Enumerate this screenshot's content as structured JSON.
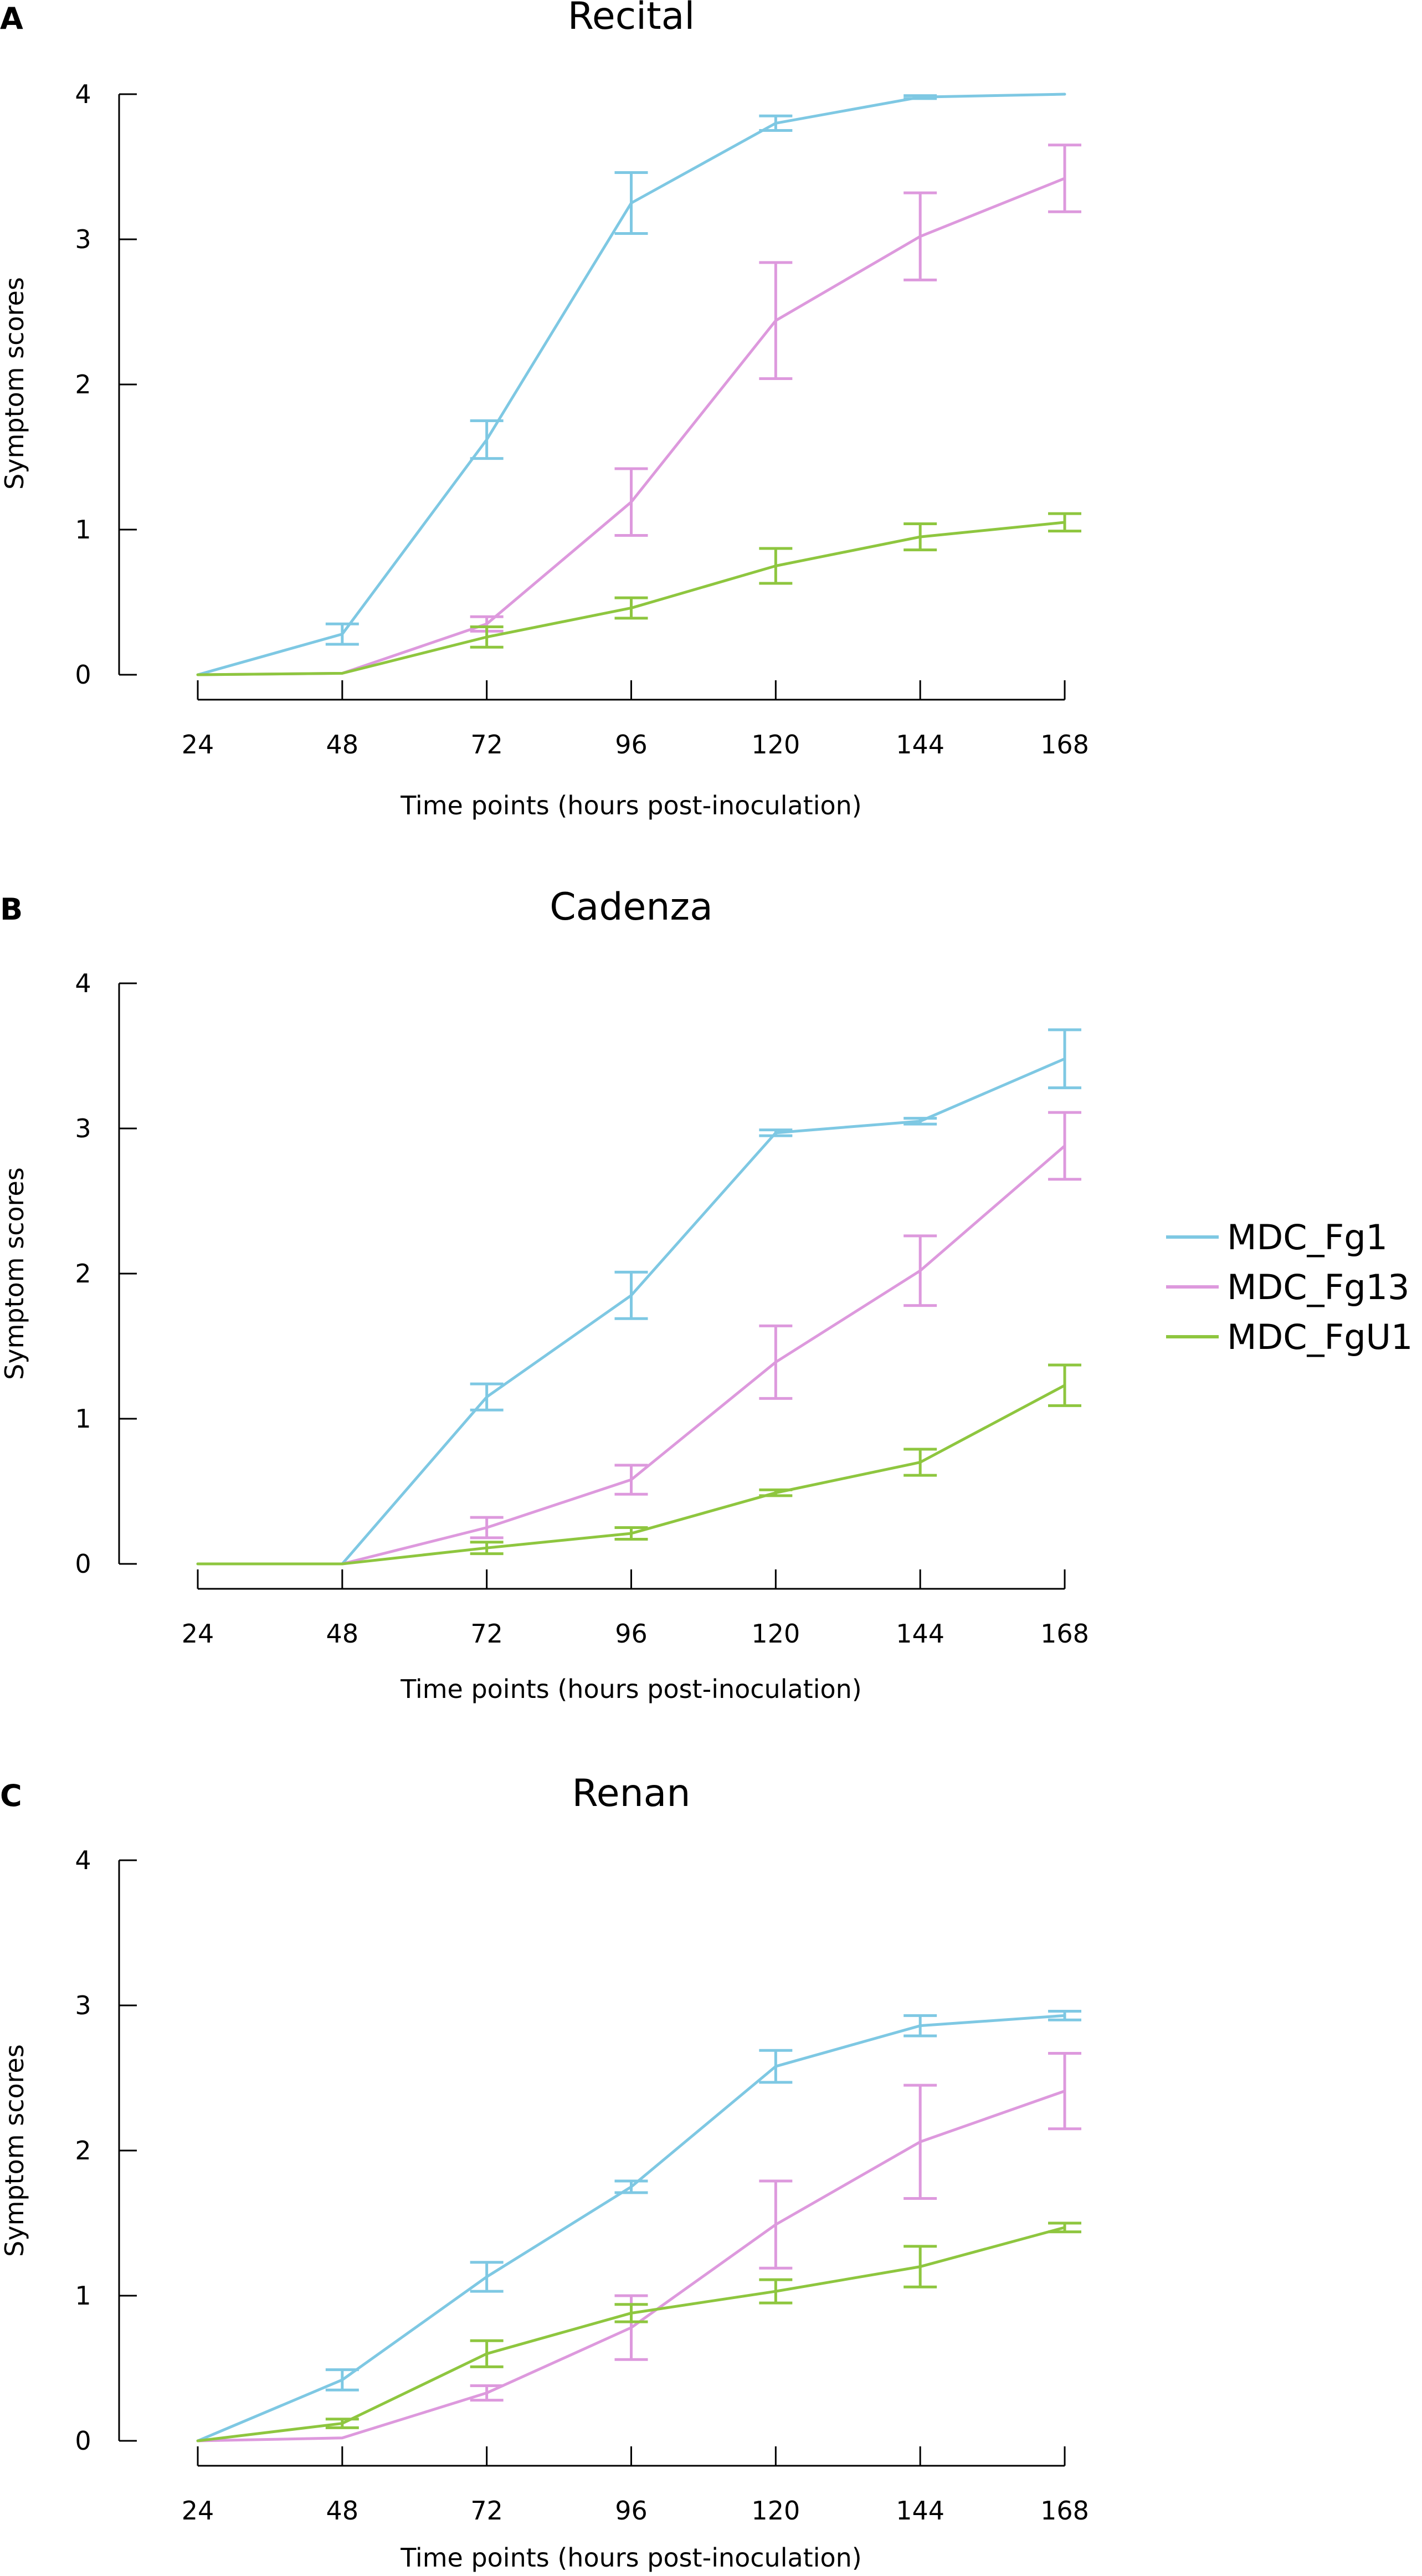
{
  "colors": {
    "MDC_Fg1": "#7ec8e3",
    "MDC_Fg13": "#dd99dd",
    "MDC_FgU1": "#8ec63f",
    "axis": "#000000",
    "background": "#ffffff"
  },
  "legend": {
    "items": [
      {
        "label": "MDC_Fg1",
        "color": "#7ec8e3"
      },
      {
        "label": "MDC_Fg13",
        "color": "#dd99dd"
      },
      {
        "label": "MDC_FgU1",
        "color": "#8ec63f"
      }
    ]
  },
  "chart_data": [
    {
      "panel": "A",
      "type": "line",
      "title": "Recital",
      "xlabel": "Time points (hours post-inoculation)",
      "ylabel": "Symptom scores",
      "x": [
        24,
        48,
        72,
        96,
        120,
        144,
        168
      ],
      "x_tick_labels": [
        "24",
        "48",
        "72",
        "96",
        "120",
        "144",
        "168"
      ],
      "y_ticks": [
        0,
        1,
        2,
        3,
        4
      ],
      "y_tick_labels": [
        "0",
        "1",
        "2",
        "3",
        "4"
      ],
      "ylim": [
        0,
        4
      ],
      "grid": false,
      "series": [
        {
          "name": "MDC_Fg1",
          "values": [
            0,
            0.28,
            1.62,
            3.25,
            3.8,
            3.98,
            4.0
          ],
          "errors": [
            0,
            0.07,
            0.13,
            0.21,
            0.05,
            0.01,
            0
          ]
        },
        {
          "name": "MDC_Fg13",
          "values": [
            0,
            0.01,
            0.35,
            1.19,
            2.44,
            3.02,
            3.42
          ],
          "errors": [
            0,
            0,
            0.05,
            0.23,
            0.4,
            0.3,
            0.23
          ]
        },
        {
          "name": "MDC_FgU1",
          "values": [
            0,
            0.01,
            0.26,
            0.46,
            0.75,
            0.95,
            1.05
          ],
          "errors": [
            0,
            0,
            0.07,
            0.07,
            0.12,
            0.09,
            0.06
          ]
        }
      ]
    },
    {
      "panel": "B",
      "type": "line",
      "title": "Cadenza",
      "xlabel": "Time points (hours post-inoculation)",
      "ylabel": "Symptom scores",
      "x": [
        24,
        48,
        72,
        96,
        120,
        144,
        168
      ],
      "x_tick_labels": [
        "24",
        "48",
        "72",
        "96",
        "120",
        "144",
        "168"
      ],
      "y_ticks": [
        0,
        1,
        2,
        3,
        4
      ],
      "y_tick_labels": [
        "0",
        "1",
        "2",
        "3",
        "4"
      ],
      "ylim": [
        0,
        4
      ],
      "grid": false,
      "series": [
        {
          "name": "MDC_Fg1",
          "values": [
            0,
            0,
            1.15,
            1.85,
            2.97,
            3.05,
            3.48
          ],
          "errors": [
            0,
            0,
            0.09,
            0.16,
            0.02,
            0.02,
            0.2
          ]
        },
        {
          "name": "MDC_Fg13",
          "values": [
            0,
            0,
            0.25,
            0.58,
            1.39,
            2.02,
            2.88
          ],
          "errors": [
            0,
            0,
            0.07,
            0.1,
            0.25,
            0.24,
            0.23
          ]
        },
        {
          "name": "MDC_FgU1",
          "values": [
            0,
            0,
            0.11,
            0.21,
            0.49,
            0.7,
            1.23
          ],
          "errors": [
            0,
            0,
            0.04,
            0.04,
            0.02,
            0.09,
            0.14
          ]
        }
      ]
    },
    {
      "panel": "C",
      "type": "line",
      "title": "Renan",
      "xlabel": "Time points (hours post-inoculation)",
      "ylabel": "Symptom scores",
      "x": [
        24,
        48,
        72,
        96,
        120,
        144,
        168
      ],
      "x_tick_labels": [
        "24",
        "48",
        "72",
        "96",
        "120",
        "144",
        "168"
      ],
      "y_ticks": [
        0,
        1,
        2,
        3,
        4
      ],
      "y_tick_labels": [
        "0",
        "1",
        "2",
        "3",
        "4"
      ],
      "ylim": [
        0,
        4
      ],
      "grid": false,
      "series": [
        {
          "name": "MDC_Fg1",
          "values": [
            0,
            0.42,
            1.13,
            1.75,
            2.58,
            2.86,
            2.93
          ],
          "errors": [
            0,
            0.07,
            0.1,
            0.04,
            0.11,
            0.07,
            0.03
          ]
        },
        {
          "name": "MDC_Fg13",
          "values": [
            0,
            0.02,
            0.33,
            0.78,
            1.49,
            2.06,
            2.41
          ],
          "errors": [
            0,
            0,
            0.05,
            0.22,
            0.3,
            0.39,
            0.26
          ]
        },
        {
          "name": "MDC_FgU1",
          "values": [
            0,
            0.12,
            0.6,
            0.88,
            1.03,
            1.2,
            1.47
          ],
          "errors": [
            0,
            0.03,
            0.09,
            0.06,
            0.08,
            0.14,
            0.03
          ]
        }
      ]
    }
  ]
}
